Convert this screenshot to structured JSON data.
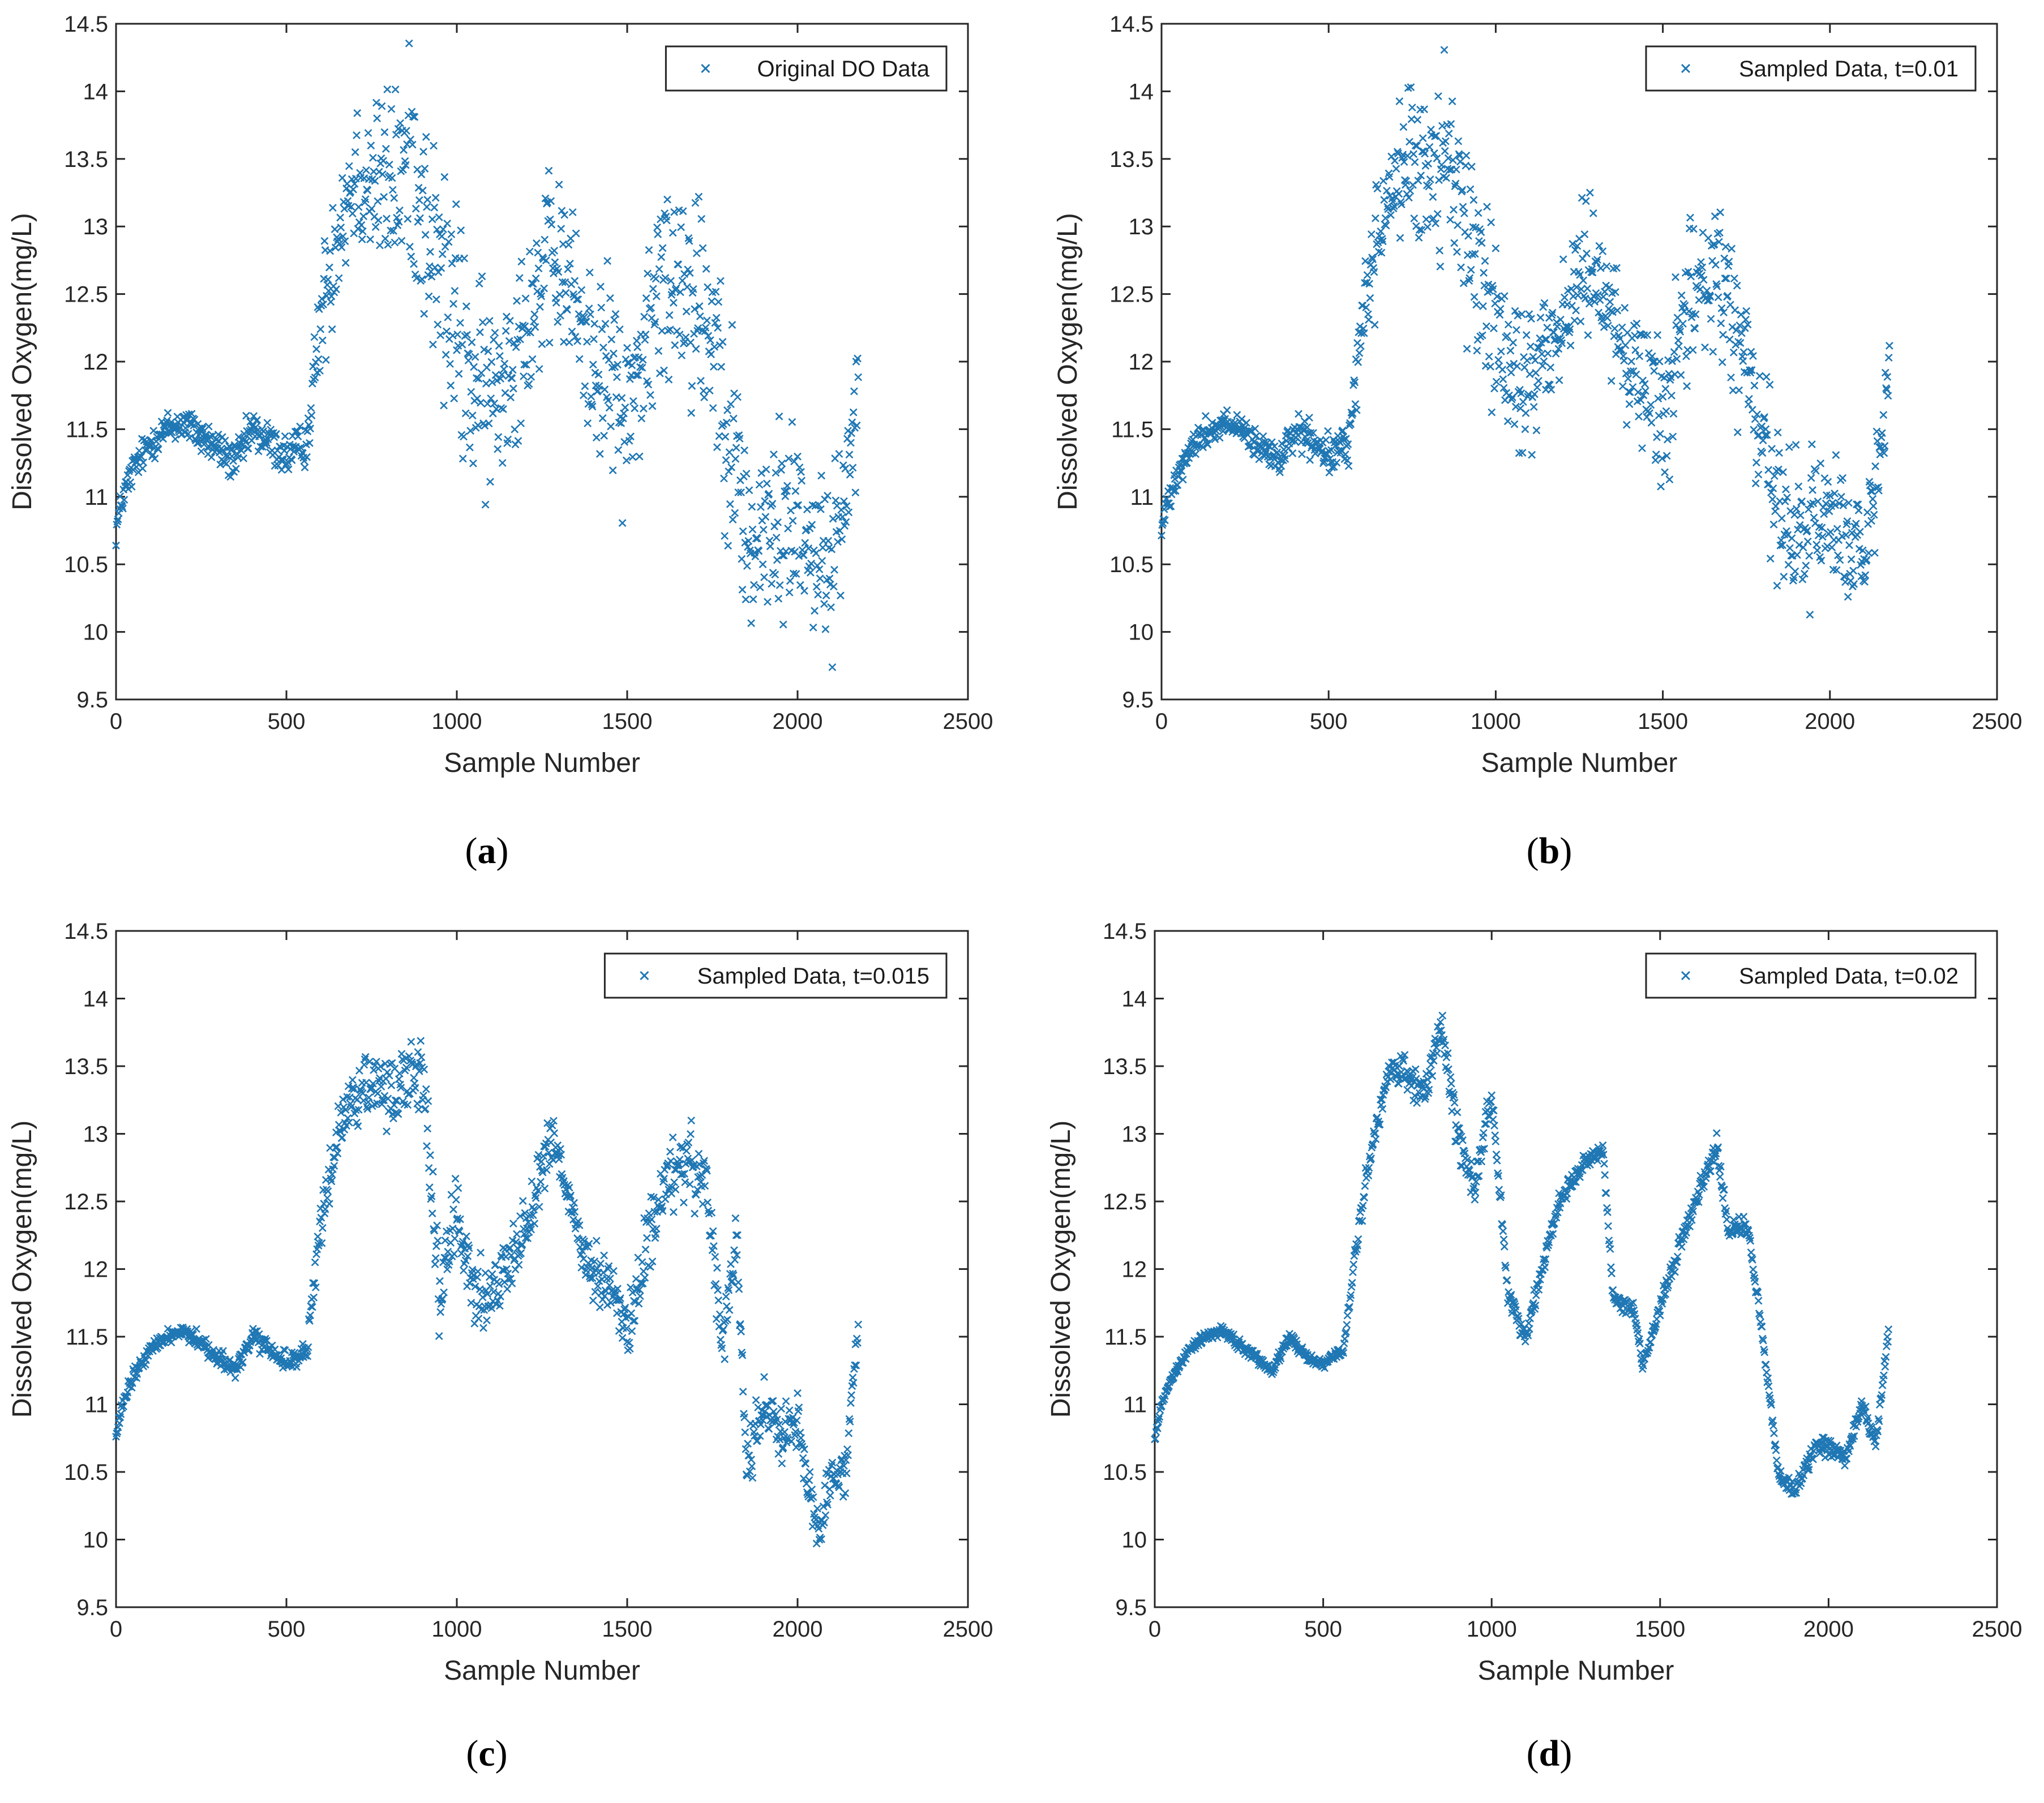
{
  "figure": {
    "panels": [
      {
        "caption_open": "(",
        "caption_letter": "a",
        "caption_close": ")"
      },
      {
        "caption_open": "(",
        "caption_letter": "b",
        "caption_close": ")"
      },
      {
        "caption_open": "(",
        "caption_letter": "c",
        "caption_close": ")"
      },
      {
        "caption_open": "(",
        "caption_letter": "d",
        "caption_close": ")"
      }
    ]
  },
  "colors": {
    "marker": "#1f77b4",
    "axis": "#262626",
    "background": "#ffffff"
  },
  "chart_data": [
    {
      "type": "scatter",
      "marker": "x",
      "title": "",
      "xlabel": "Sample Number",
      "ylabel": "Dissolved Oxygen(mg/L)",
      "xlim": [
        0,
        2500
      ],
      "ylim": [
        9.5,
        14.5
      ],
      "xticks": [
        0,
        500,
        1000,
        1500,
        2000,
        2500
      ],
      "yticks": [
        9.5,
        10,
        10.5,
        11,
        11.5,
        12,
        12.5,
        13,
        13.5,
        14,
        14.5
      ],
      "legend": "Original DO Data",
      "legend_position": "top-right",
      "grid": false,
      "n_points": 2180,
      "jitter": 1.0,
      "series_profile": {
        "x": [
          0,
          20,
          50,
          100,
          150,
          200,
          250,
          300,
          350,
          400,
          450,
          500,
          560,
          600,
          650,
          700,
          800,
          870,
          920,
          980,
          1050,
          1100,
          1200,
          1280,
          1330,
          1380,
          1450,
          1500,
          1560,
          1620,
          1660,
          1700,
          1760,
          1820,
          1860,
          1900,
          1960,
          2000,
          2050,
          2100,
          2140,
          2180
        ],
        "y": [
          10.75,
          11.0,
          11.2,
          11.4,
          11.5,
          11.55,
          11.45,
          11.35,
          11.25,
          11.5,
          11.4,
          11.3,
          11.4,
          12.3,
          13.0,
          13.4,
          13.3,
          13.5,
          12.9,
          12.4,
          11.8,
          11.7,
          12.3,
          12.75,
          12.6,
          12.1,
          11.9,
          11.6,
          12.2,
          12.6,
          12.7,
          12.5,
          12.2,
          11.2,
          10.6,
          10.7,
          10.8,
          10.9,
          10.6,
          10.5,
          11.0,
          11.9
        ]
      },
      "spread_profile": {
        "x": [
          0,
          560,
          620,
          900,
          1000,
          1100,
          1300,
          1500,
          1700,
          1800,
          2000,
          2180
        ],
        "s": [
          0.06,
          0.08,
          0.25,
          0.4,
          0.45,
          0.35,
          0.3,
          0.35,
          0.45,
          0.4,
          0.35,
          0.25
        ]
      }
    },
    {
      "type": "scatter",
      "marker": "x",
      "title": "",
      "xlabel": "Sample Number",
      "ylabel": "Dissolved Oxygen(mg/L)",
      "xlim": [
        0,
        2500
      ],
      "ylim": [
        9.5,
        14.5
      ],
      "xticks": [
        0,
        500,
        1000,
        1500,
        2000,
        2500
      ],
      "yticks": [
        9.5,
        10,
        10.5,
        11,
        11.5,
        12,
        12.5,
        13,
        13.5,
        14,
        14.5
      ],
      "legend": "Sampled Data, t=0.01",
      "legend_position": "top-right",
      "grid": false,
      "n_points": 2180,
      "jitter": 0.85,
      "series_profile": {
        "x": [
          0,
          20,
          50,
          100,
          150,
          200,
          250,
          300,
          350,
          400,
          450,
          500,
          560,
          600,
          650,
          700,
          800,
          870,
          920,
          980,
          1050,
          1100,
          1200,
          1280,
          1330,
          1380,
          1450,
          1500,
          1560,
          1620,
          1660,
          1700,
          1760,
          1820,
          1860,
          1900,
          1960,
          2000,
          2050,
          2100,
          2140,
          2180
        ],
        "y": [
          10.75,
          11.0,
          11.2,
          11.4,
          11.5,
          11.55,
          11.45,
          11.35,
          11.25,
          11.5,
          11.4,
          11.3,
          11.4,
          12.3,
          13.0,
          13.4,
          13.4,
          13.5,
          12.9,
          12.4,
          11.8,
          11.9,
          12.3,
          12.8,
          12.6,
          12.0,
          11.9,
          11.6,
          12.2,
          12.7,
          12.6,
          12.5,
          11.8,
          11.2,
          10.7,
          10.7,
          10.8,
          10.9,
          10.7,
          10.5,
          11.0,
          11.9
        ]
      },
      "spread_profile": {
        "x": [
          0,
          560,
          620,
          900,
          1000,
          1100,
          1300,
          1500,
          1700,
          1800,
          2000,
          2180
        ],
        "s": [
          0.06,
          0.08,
          0.25,
          0.38,
          0.42,
          0.3,
          0.28,
          0.3,
          0.4,
          0.38,
          0.32,
          0.22
        ]
      }
    },
    {
      "type": "scatter",
      "marker": "x",
      "title": "",
      "xlabel": "Sample Number",
      "ylabel": "Dissolved Oxygen(mg/L)",
      "xlim": [
        0,
        2500
      ],
      "ylim": [
        9.5,
        14.5
      ],
      "xticks": [
        0,
        500,
        1000,
        1500,
        2000,
        2500
      ],
      "yticks": [
        9.5,
        10,
        10.5,
        11,
        11.5,
        12,
        12.5,
        13,
        13.5,
        14,
        14.5
      ],
      "legend": "Sampled Data, t=0.015",
      "legend_position": "top-right",
      "grid": false,
      "n_points": 2180,
      "jitter": 0.55,
      "series_profile": {
        "x": [
          0,
          20,
          50,
          100,
          150,
          200,
          250,
          300,
          350,
          400,
          450,
          500,
          560,
          600,
          650,
          700,
          800,
          900,
          950,
          1000,
          1050,
          1100,
          1200,
          1280,
          1330,
          1380,
          1450,
          1500,
          1560,
          1620,
          1660,
          1700,
          1730,
          1780,
          1820,
          1850,
          1900,
          1960,
          2000,
          2060,
          2100,
          2140,
          2180
        ],
        "y": [
          10.75,
          11.0,
          11.2,
          11.4,
          11.5,
          11.55,
          11.45,
          11.35,
          11.25,
          11.5,
          11.4,
          11.3,
          11.4,
          12.3,
          13.0,
          13.3,
          13.3,
          13.5,
          11.8,
          12.4,
          11.8,
          11.8,
          12.3,
          13.0,
          12.5,
          12.0,
          11.9,
          11.5,
          12.2,
          12.7,
          12.7,
          12.8,
          12.6,
          11.4,
          12.3,
          10.5,
          11.0,
          10.8,
          10.9,
          10.0,
          10.5,
          10.5,
          11.6
        ]
      },
      "spread_profile": {
        "x": [
          0,
          560,
          620,
          900,
          1000,
          1100,
          1300,
          1500,
          1700,
          1800,
          2000,
          2180
        ],
        "s": [
          0.05,
          0.07,
          0.2,
          0.3,
          0.25,
          0.22,
          0.15,
          0.2,
          0.3,
          0.2,
          0.2,
          0.12
        ]
      }
    },
    {
      "type": "scatter",
      "marker": "x",
      "title": "",
      "xlabel": "Sample Number",
      "ylabel": "Dissolved Oxygen(mg/L)",
      "xlim": [
        0,
        2500
      ],
      "ylim": [
        9.5,
        14.5
      ],
      "xticks": [
        0,
        500,
        1000,
        1500,
        2000,
        2500
      ],
      "yticks": [
        9.5,
        10,
        10.5,
        11,
        11.5,
        12,
        12.5,
        13,
        13.5,
        14,
        14.5
      ],
      "legend": "Sampled Data, t=0.02",
      "legend_position": "top-right",
      "grid": false,
      "n_points": 2180,
      "jitter": 0.35,
      "series_profile": {
        "x": [
          0,
          20,
          50,
          100,
          150,
          200,
          250,
          300,
          350,
          400,
          450,
          500,
          560,
          600,
          650,
          700,
          800,
          850,
          900,
          950,
          1000,
          1050,
          1100,
          1200,
          1280,
          1330,
          1360,
          1420,
          1450,
          1500,
          1560,
          1620,
          1670,
          1700,
          1760,
          1800,
          1850,
          1900,
          1960,
          2000,
          2050,
          2100,
          2140,
          2180
        ],
        "y": [
          10.75,
          11.0,
          11.2,
          11.4,
          11.5,
          11.55,
          11.45,
          11.35,
          11.25,
          11.5,
          11.35,
          11.3,
          11.4,
          12.2,
          13.0,
          13.5,
          13.3,
          13.8,
          13.0,
          12.6,
          13.3,
          11.8,
          11.5,
          12.5,
          12.8,
          12.9,
          11.8,
          11.7,
          11.3,
          11.7,
          12.2,
          12.6,
          12.9,
          12.3,
          12.3,
          11.6,
          10.5,
          10.35,
          10.7,
          10.7,
          10.6,
          11.0,
          10.7,
          11.6
        ]
      },
      "spread_profile": {
        "x": [
          0,
          560,
          620,
          900,
          1000,
          1100,
          1300,
          1500,
          1700,
          1800,
          2000,
          2180
        ],
        "s": [
          0.05,
          0.06,
          0.15,
          0.22,
          0.18,
          0.12,
          0.08,
          0.1,
          0.12,
          0.08,
          0.1,
          0.06
        ]
      }
    }
  ]
}
